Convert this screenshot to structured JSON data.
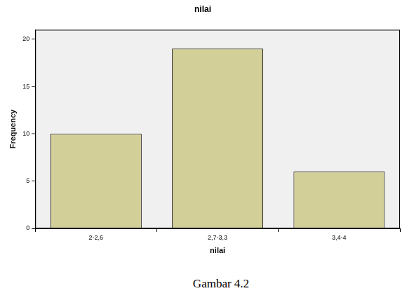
{
  "chart_data": {
    "type": "bar",
    "title": "nilai",
    "x_label": "nilai",
    "y_label": "Frequency",
    "categories": [
      "2-2,6",
      "2,7-3,3",
      "3,4-4"
    ],
    "values": [
      10,
      19,
      6
    ],
    "color": "#d3cf98",
    "ylim": [
      0,
      21
    ],
    "yticks": [
      0,
      5,
      10,
      15,
      20
    ],
    "grid": false
  },
  "caption": "Gambar 4.2"
}
